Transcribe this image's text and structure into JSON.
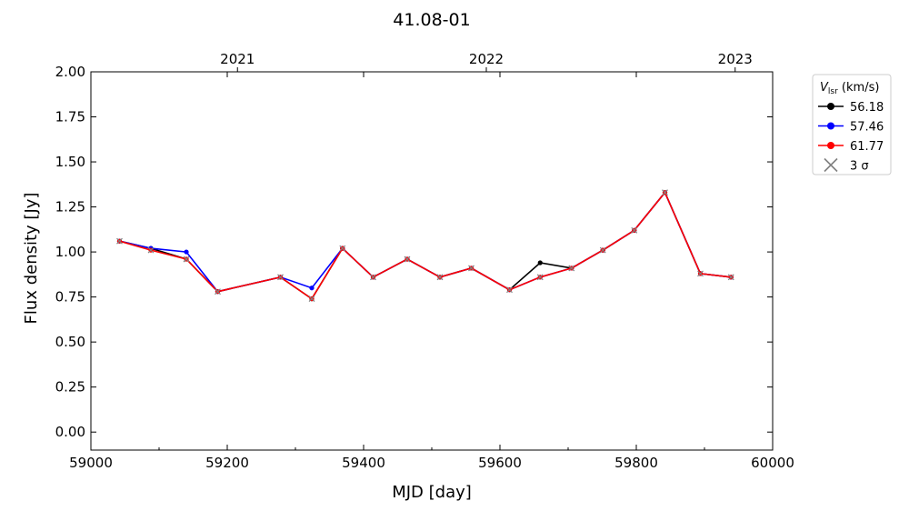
{
  "chart_data": {
    "type": "line",
    "title": "41.08-01",
    "xlabel": "MJD [day]",
    "ylabel": "Flux density [Jy]",
    "xlim": [
      59000,
      60000
    ],
    "ylim": [
      -0.1,
      2.0
    ],
    "xticks": [
      59000,
      59200,
      59400,
      59600,
      59800,
      60000
    ],
    "yticks": [
      "0.00",
      "0.25",
      "0.50",
      "0.75",
      "1.00",
      "1.25",
      "1.50",
      "1.75",
      "2.00"
    ],
    "top_axis": {
      "ticks": [
        {
          "label": "2021",
          "mjd": 59215
        },
        {
          "label": "2022",
          "mjd": 59580
        },
        {
          "label": "2023",
          "mjd": 59945
        }
      ]
    },
    "legend": {
      "placement": "outside-right",
      "title_main": "V",
      "title_sub": "lsr",
      "title_unit": " (km/s)",
      "entries": [
        {
          "label": "56.18",
          "color": "#000000",
          "marker": "circle"
        },
        {
          "label": "57.46",
          "color": "#0000ff",
          "marker": "circle"
        },
        {
          "label": "61.77",
          "color": "#ff0000",
          "marker": "circle"
        },
        {
          "label": "3 σ",
          "color": "#808080",
          "marker": "x"
        }
      ]
    },
    "series": [
      {
        "name": "56.18",
        "color": "#000000",
        "x": [
          59042,
          59088,
          59140,
          59186,
          59278,
          59324,
          59369,
          59414,
          59464,
          59512,
          59558,
          59614,
          59659,
          59705,
          59751,
          59797,
          59842,
          59894,
          59939
        ],
        "y": [
          1.06,
          1.02,
          0.96,
          0.78,
          0.86,
          0.74,
          1.02,
          0.86,
          0.96,
          0.86,
          0.91,
          0.79,
          0.94,
          0.91,
          1.01,
          1.12,
          1.33,
          0.88,
          0.86
        ]
      },
      {
        "name": "57.46",
        "color": "#0000ff",
        "x": [
          59042,
          59088,
          59140,
          59186,
          59278,
          59324,
          59369,
          59414,
          59464,
          59512,
          59558,
          59614,
          59659,
          59705,
          59751,
          59797,
          59842,
          59894,
          59939
        ],
        "y": [
          1.06,
          1.02,
          1.0,
          0.78,
          0.86,
          0.8,
          1.02,
          0.86,
          0.96,
          0.86,
          0.91,
          0.79,
          0.86,
          0.91,
          1.01,
          1.12,
          1.33,
          0.88,
          0.86
        ]
      },
      {
        "name": "61.77",
        "color": "#ff0000",
        "x": [
          59042,
          59088,
          59140,
          59186,
          59278,
          59324,
          59369,
          59414,
          59464,
          59512,
          59558,
          59614,
          59659,
          59705,
          59751,
          59797,
          59842,
          59894,
          59939
        ],
        "y": [
          1.06,
          1.01,
          0.96,
          0.78,
          0.86,
          0.74,
          1.02,
          0.86,
          0.96,
          0.86,
          0.91,
          0.79,
          0.86,
          0.91,
          1.01,
          1.12,
          1.33,
          0.88,
          0.86
        ]
      }
    ],
    "sigma3": {
      "x": [
        59042,
        59088,
        59140,
        59186,
        59278,
        59324,
        59369,
        59414,
        59464,
        59512,
        59558,
        59614,
        59659,
        59705,
        59751,
        59797,
        59842,
        59894,
        59939
      ],
      "y": [
        1.06,
        1.01,
        0.96,
        0.78,
        0.86,
        0.74,
        1.02,
        0.86,
        0.96,
        0.86,
        0.91,
        0.79,
        0.86,
        0.91,
        1.01,
        1.12,
        1.33,
        0.88,
        0.86
      ]
    },
    "grid": false
  }
}
